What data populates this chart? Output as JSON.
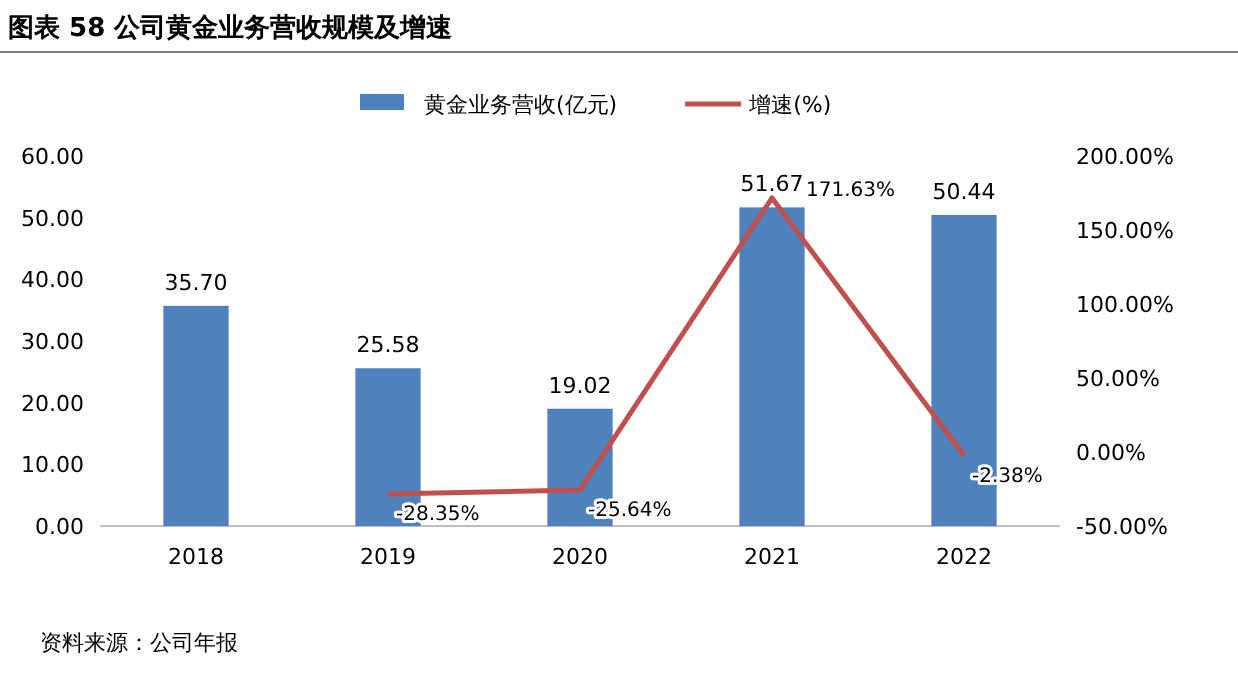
{
  "chart_data": {
    "type": "bar",
    "title": "图表 58 公司黄金业务营收规模及增速",
    "annotations": [
      "资料来源：公司年报"
    ],
    "categories": [
      "2018",
      "2019",
      "2020",
      "2021",
      "2022"
    ],
    "series": [
      {
        "name": "黄金业务营收(亿元)",
        "color": "#4f81bd",
        "values": [
          35.7,
          25.58,
          19.02,
          51.67,
          50.44
        ],
        "value_labels": [
          "35.70",
          "25.58",
          "19.02",
          "51.67",
          "50.44"
        ]
      },
      {
        "name": "增速(%)",
        "type": "line",
        "axis": "y2",
        "color": "#c0504d",
        "values": [
          null,
          -28.35,
          -25.64,
          171.63,
          -2.38
        ],
        "value_labels": [
          null,
          "-28.35%",
          "-25.64%",
          "171.63%",
          "-2.38%"
        ]
      }
    ],
    "ylim": [
      0,
      60
    ],
    "yticks": [
      {
        "value": 0,
        "label": "0.00"
      },
      {
        "value": 10,
        "label": "10.00"
      },
      {
        "value": 20,
        "label": "20.00"
      },
      {
        "value": 30,
        "label": "30.00"
      },
      {
        "value": 40,
        "label": "40.00"
      },
      {
        "value": 50,
        "label": "50.00"
      },
      {
        "value": 60,
        "label": "60.00"
      }
    ],
    "y2lim": [
      -50,
      200
    ],
    "y2ticks": [
      {
        "value": -50,
        "label": "-50.00%"
      },
      {
        "value": 0,
        "label": "0.00%"
      },
      {
        "value": 50,
        "label": "50.00%"
      },
      {
        "value": 100,
        "label": "100.00%"
      },
      {
        "value": 150,
        "label": "150.00%"
      },
      {
        "value": 200,
        "label": "200.00%"
      }
    ],
    "legend": "top"
  }
}
